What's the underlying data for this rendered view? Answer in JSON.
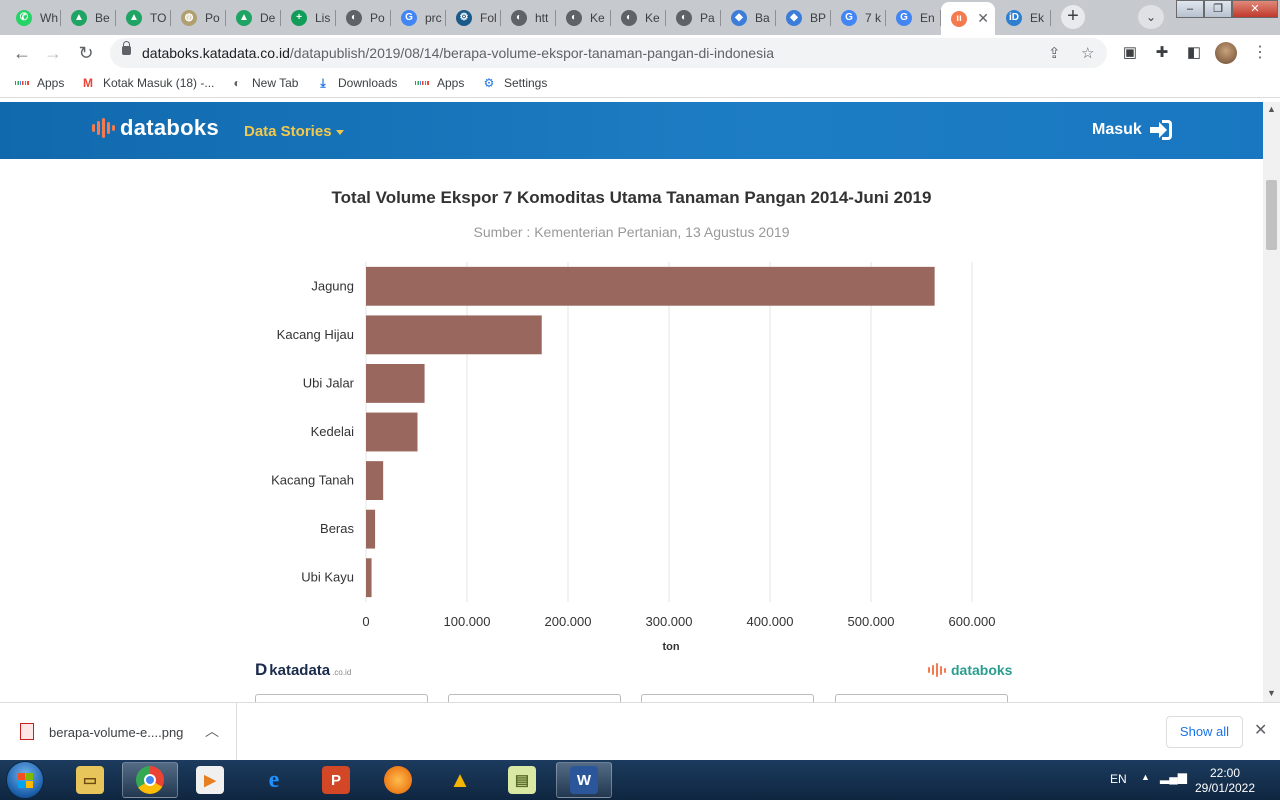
{
  "browser": {
    "tabs": [
      {
        "label": "Wh",
        "fav_color": "#25d366",
        "fav": "✆"
      },
      {
        "label": "Be",
        "fav_color": "#1fa463",
        "fav": "▲"
      },
      {
        "label": "TO",
        "fav_color": "#1fa463",
        "fav": "▲"
      },
      {
        "label": "Po",
        "fav_color": "#b0a070",
        "fav": "◍"
      },
      {
        "label": "De",
        "fav_color": "#1fa463",
        "fav": "▲"
      },
      {
        "label": "Lis",
        "fav_color": "#0f9d58",
        "fav": "+"
      },
      {
        "label": "Po",
        "fav_color": "#5f6368",
        "fav": "◐"
      },
      {
        "label": "prc",
        "fav_color": "#4285f4",
        "fav": "G"
      },
      {
        "label": "Fol",
        "fav_color": "#1a5a8a",
        "fav": "⚙"
      },
      {
        "label": "htt",
        "fav_color": "#5f6368",
        "fav": "◐"
      },
      {
        "label": "Ke",
        "fav_color": "#5f6368",
        "fav": "◐"
      },
      {
        "label": "Ke",
        "fav_color": "#5f6368",
        "fav": "◐"
      },
      {
        "label": "Pa",
        "fav_color": "#5f6368",
        "fav": "◐"
      },
      {
        "label": "Ba",
        "fav_color": "#3b7dd8",
        "fav": "◆"
      },
      {
        "label": "BP",
        "fav_color": "#3b7dd8",
        "fav": "◆"
      },
      {
        "label": "7 k",
        "fav_color": "#4285f4",
        "fav": "G"
      },
      {
        "label": "En",
        "fav_color": "#4285f4",
        "fav": "G"
      },
      {
        "label": "",
        "fav_color": "#f47b50",
        "fav": "ıı",
        "active": true
      },
      {
        "label": "Ek",
        "fav_color": "#2f7fd1",
        "fav": "iD"
      }
    ],
    "url_main": "databoks.katadata.co.id",
    "url_path": "/datapublish/2019/08/14/berapa-volume-ekspor-tanaman-pangan-di-indonesia",
    "bookmarks": [
      {
        "label": "Apps",
        "icon": "apps-grid-icon"
      },
      {
        "label": "Kotak Masuk (18) -...",
        "icon": "gmail-icon"
      },
      {
        "label": "New Tab",
        "icon": "globe-icon"
      },
      {
        "label": "Downloads",
        "icon": "download-icon"
      },
      {
        "label": "Apps",
        "icon": "apps-grid-icon"
      },
      {
        "label": "Settings",
        "icon": "gear-icon"
      }
    ]
  },
  "site": {
    "logo": "databoks",
    "nav_data_stories": "Data Stories",
    "login": "Masuk",
    "footer_katadata": "katadata",
    "footer_katadata_tld": ".co.id",
    "footer_databoks": "databoks"
  },
  "chart_data": {
    "type": "bar",
    "orientation": "horizontal",
    "title": "Total Volume Ekspor 7 Komoditas Utama Tanaman Pangan 2014-Juni 2019",
    "subtitle": "Sumber : Kementerian Pertanian, 13 Agustus 2019",
    "categories": [
      "Jagung",
      "Kacang Hijau",
      "Ubi Jalar",
      "Kedelai",
      "Kacang Tanah",
      "Beras",
      "Ubi Kayu"
    ],
    "values": [
      563000,
      174000,
      58000,
      51000,
      17000,
      9000,
      5500
    ],
    "xlabel": "ton",
    "xlim": [
      0,
      600000
    ],
    "xticks": [
      "0",
      "100.000",
      "200.000",
      "300.000",
      "400.000",
      "500.000",
      "600.000"
    ],
    "bar_color": "#9a675e",
    "grid": true
  },
  "download": {
    "filename": "berapa-volume-e....png",
    "show_all": "Show all"
  },
  "taskbar": {
    "lang": "EN",
    "time": "22:00",
    "date": "29/01/2022"
  }
}
